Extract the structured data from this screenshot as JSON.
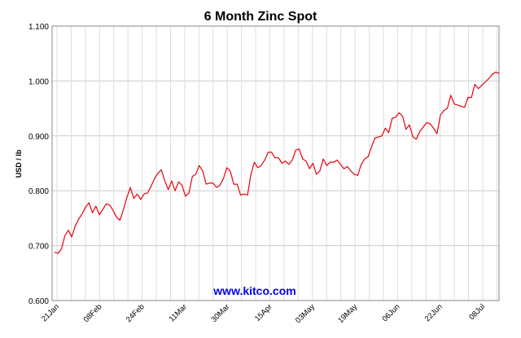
{
  "chart_data": {
    "type": "line",
    "title": "6 Month Zinc Spot",
    "ylabel": "USD / lb",
    "xlabel": "",
    "ylim": [
      0.6,
      1.1
    ],
    "yticks": [
      0.6,
      0.7,
      0.8,
      0.9,
      1.0,
      1.1
    ],
    "ytick_labels": [
      "0.600",
      "0.700",
      "0.800",
      "0.900",
      "1.000",
      "1.100"
    ],
    "xtick_labels": [
      "21Jan",
      "08Feb",
      "24Feb",
      "11Mar",
      "30Mar",
      "15Apr",
      "03May",
      "19May",
      "06Jun",
      "22Jun",
      "08Jul"
    ],
    "grid": true,
    "line_color": "#e8000b",
    "watermark": "www.kitco.com",
    "series": [
      {
        "values": [
          0.688,
          0.686,
          0.694,
          0.718,
          0.728,
          0.716,
          0.736,
          0.748,
          0.758,
          0.77,
          0.778,
          0.76,
          0.772,
          0.756,
          0.766,
          0.776,
          0.774,
          0.764,
          0.752,
          0.746,
          0.766,
          0.788,
          0.806,
          0.786,
          0.794,
          0.784,
          0.794,
          0.796,
          0.808,
          0.822,
          0.832,
          0.838,
          0.818,
          0.802,
          0.818,
          0.8,
          0.816,
          0.81,
          0.79,
          0.796,
          0.826,
          0.83,
          0.846,
          0.836,
          0.812,
          0.814,
          0.814,
          0.806,
          0.81,
          0.822,
          0.842,
          0.836,
          0.812,
          0.812,
          0.792,
          0.794,
          0.792,
          0.83,
          0.852,
          0.842,
          0.846,
          0.856,
          0.87,
          0.87,
          0.86,
          0.86,
          0.85,
          0.854,
          0.848,
          0.856,
          0.874,
          0.876,
          0.858,
          0.854,
          0.84,
          0.85,
          0.83,
          0.836,
          0.858,
          0.846,
          0.852,
          0.852,
          0.856,
          0.848,
          0.84,
          0.844,
          0.836,
          0.83,
          0.828,
          0.848,
          0.858,
          0.862,
          0.88,
          0.896,
          0.898,
          0.9,
          0.914,
          0.906,
          0.932,
          0.934,
          0.942,
          0.936,
          0.912,
          0.92,
          0.898,
          0.894,
          0.908,
          0.916,
          0.924,
          0.922,
          0.914,
          0.904,
          0.938,
          0.946,
          0.95,
          0.974,
          0.958,
          0.956,
          0.954,
          0.952,
          0.97,
          0.97,
          0.994,
          0.986,
          0.992,
          0.998,
          1.004,
          1.012,
          1.016,
          1.014
        ]
      }
    ]
  }
}
